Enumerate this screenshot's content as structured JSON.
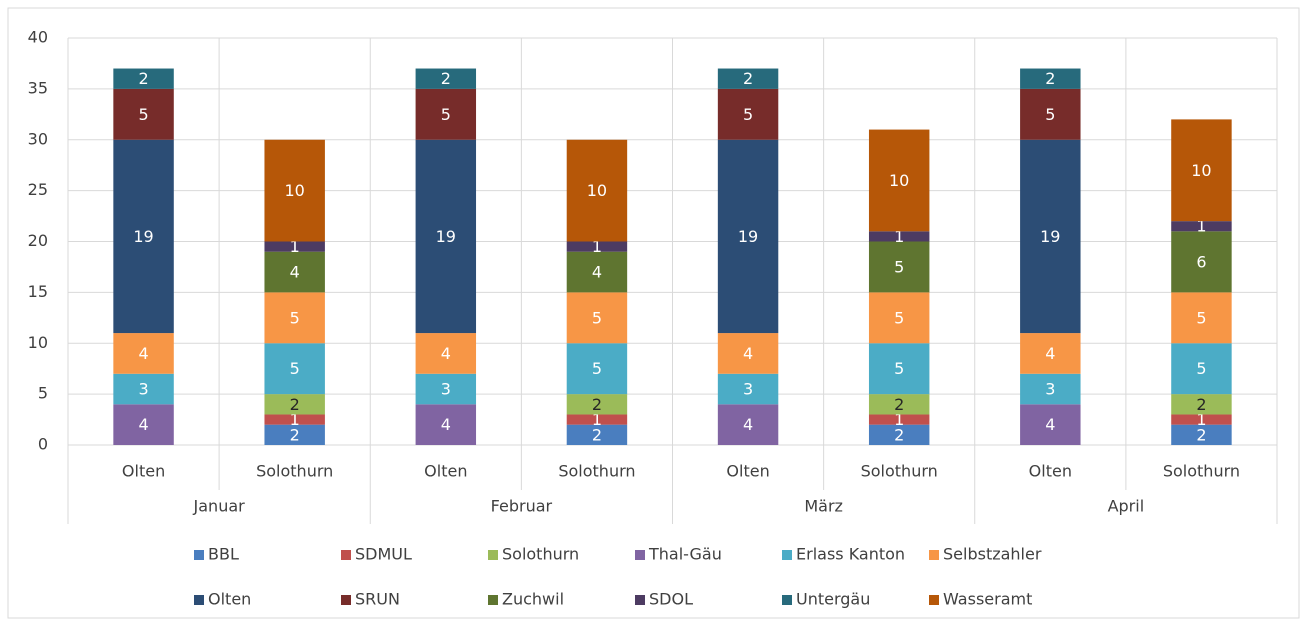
{
  "chart_data": {
    "type": "stacked_bar",
    "groups": [
      "Januar",
      "Februar",
      "März",
      "April"
    ],
    "categories": [
      "Olten",
      "Solothurn",
      "Olten",
      "Solothurn",
      "Olten",
      "Solothurn",
      "Olten",
      "Solothurn"
    ],
    "series": [
      {
        "name": "BBL",
        "color": "#4a7ebf",
        "label_color": "#ffffff",
        "values": [
          null,
          2,
          null,
          2,
          null,
          2,
          null,
          2
        ]
      },
      {
        "name": "SDMUL",
        "color": "#c0504d",
        "label_color": "#ffffff",
        "values": [
          null,
          1,
          null,
          1,
          null,
          1,
          null,
          1
        ]
      },
      {
        "name": "Solothurn",
        "color": "#9bbb59",
        "label_color": "#262626",
        "values": [
          null,
          2,
          null,
          2,
          null,
          2,
          null,
          2
        ]
      },
      {
        "name": "Thal-Gäu",
        "color": "#8064a2",
        "label_color": "#ffffff",
        "values": [
          4,
          null,
          4,
          null,
          4,
          null,
          4,
          null
        ]
      },
      {
        "name": "Erlass Kanton",
        "color": "#4bacc6",
        "label_color": "#ffffff",
        "values": [
          3,
          5,
          3,
          5,
          3,
          5,
          3,
          5
        ]
      },
      {
        "name": "Selbstzahler",
        "color": "#f79646",
        "label_color": "#ffffff",
        "values": [
          4,
          5,
          4,
          5,
          4,
          5,
          4,
          5
        ]
      },
      {
        "name": "Olten",
        "color": "#2c4d75",
        "label_color": "#ffffff",
        "values": [
          19,
          null,
          19,
          null,
          19,
          null,
          19,
          null
        ]
      },
      {
        "name": "SRUN",
        "color": "#772c2a",
        "label_color": "#ffffff",
        "values": [
          5,
          null,
          5,
          null,
          5,
          null,
          5,
          null
        ]
      },
      {
        "name": "Zuchwil",
        "color": "#5f7530",
        "label_color": "#ffffff",
        "values": [
          null,
          4,
          null,
          4,
          null,
          5,
          null,
          6
        ]
      },
      {
        "name": "SDOL",
        "color": "#4d3b62",
        "label_color": "#ffffff",
        "values": [
          null,
          1,
          null,
          1,
          null,
          1,
          null,
          1
        ]
      },
      {
        "name": "Untergäu",
        "color": "#276a7c",
        "label_color": "#ffffff",
        "values": [
          2,
          null,
          2,
          null,
          2,
          null,
          2,
          null
        ]
      },
      {
        "name": "Wasseramt",
        "color": "#b65708",
        "label_color": "#ffffff",
        "values": [
          null,
          10,
          null,
          10,
          null,
          10,
          null,
          10
        ]
      }
    ],
    "ylim": [
      0,
      40
    ],
    "yticks": [
      0,
      5,
      10,
      15,
      20,
      25,
      30,
      35,
      40
    ],
    "grid": true,
    "legend": "bottom"
  }
}
